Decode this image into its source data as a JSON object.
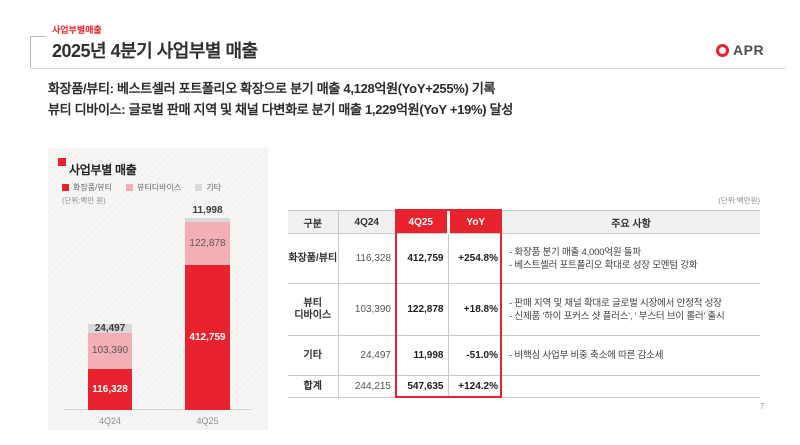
{
  "header": {
    "eyebrow": "사업부별매출",
    "title": "2025년 4분기 사업부별 매출",
    "logo_text": "APR"
  },
  "highlights": {
    "line1": "화장품/뷰티: 베스트셀러 포트폴리오 확장으로 분기 매출 4,128억원(YoY+255%) 기록",
    "line2": "뷰티 디바이스: 글로벌 판매 지역 및 채널 다변화로 분기 매출 1,229억원(YoY +19%) 달성"
  },
  "chart": {
    "title": "사업부별 매출",
    "unit": "(단위:백만 원)",
    "legend": [
      {
        "label": "화장품/뷰티",
        "color": "#e8232d"
      },
      {
        "label": "뷰티디바이스",
        "color": "#f4aeb5"
      },
      {
        "label": "기타",
        "color": "#d9d9d9"
      }
    ]
  },
  "chart_data": {
    "type": "bar",
    "stacked": true,
    "title": "사업부별 매출",
    "unit": "(단위:백만 원)",
    "categories": [
      "4Q24",
      "4Q25"
    ],
    "series": [
      {
        "name": "화장품/뷰티",
        "values": [
          116328,
          412759
        ],
        "color": "#e8232d"
      },
      {
        "name": "뷰티디바이스",
        "values": [
          103390,
          122878
        ],
        "color": "#f4aeb5"
      },
      {
        "name": "기타",
        "values": [
          24497,
          11998
        ],
        "color": "#d9d9d9"
      }
    ],
    "totals": [
      244215,
      547635
    ],
    "legend_position": "top",
    "grid": false
  },
  "table": {
    "unit": "(단위:백만원)",
    "columns": [
      "구분",
      "4Q24",
      "4Q25",
      "YoY",
      "주요 사항"
    ],
    "rows": [
      {
        "name": "화장품/뷰티",
        "q424": "116,328",
        "q425": "412,759",
        "yoy": "+254.8%",
        "notes": [
          "- 화장품 분기 매출 4,000억원 돌파",
          "- 베스트셀러 포트폴리오 확대로 성장 모멘텀 강화"
        ]
      },
      {
        "name": "뷰티\n디바이스",
        "q424": "103,390",
        "q425": "122,878",
        "yoy": "+18.8%",
        "notes": [
          "- 판매 지역 및 채널 확대로 글로벌 시장에서 안정적 성장",
          "- 신제품 '하이 포커스 샷 플러스', ' 부스터 브이 롤러' 출시"
        ]
      },
      {
        "name": "기타",
        "q424": "24,497",
        "q425": "11,998",
        "yoy": "-51.0%",
        "notes": [
          "- 비핵심 사업부 비중 축소에 따른 감소세"
        ]
      }
    ],
    "total": {
      "name": "합계",
      "q424": "244,215",
      "q425": "547,635",
      "yoy": "+124.2%",
      "notes": ""
    }
  },
  "page_number": "7",
  "colors": {
    "brand_red": "#e8232d",
    "pink": "#f4aeb5",
    "gray_segment": "#d9d9d9",
    "card_bg": "#f7f6f4",
    "table_header_bg": "#f1f1f1",
    "border_gray": "#c9c9c9"
  }
}
